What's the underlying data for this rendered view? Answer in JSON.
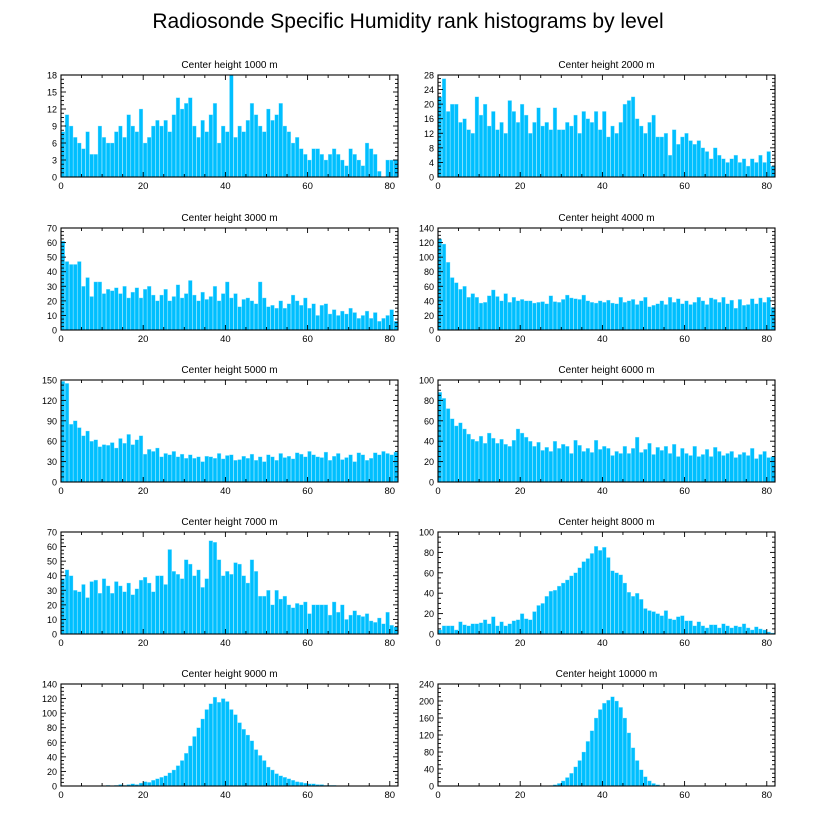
{
  "title": "Radiosonde Specific Humidity rank histograms by level",
  "colors": {
    "bar": "#00bfff",
    "bar_edge": "#9fe8ff",
    "axis": "#000000"
  },
  "chart_data": [
    {
      "type": "bar",
      "title": "Center height 1000 m",
      "xlim": [
        0,
        82
      ],
      "ylim": [
        0,
        18
      ],
      "xticks": [
        0,
        20,
        40,
        60,
        80
      ],
      "yticks": [
        0,
        3,
        6,
        9,
        12,
        15,
        18
      ],
      "values": [
        8,
        11,
        9,
        7,
        6,
        5,
        8,
        4,
        4,
        9,
        7,
        6,
        6,
        8,
        9,
        7,
        11,
        9,
        8,
        12,
        6,
        7,
        9,
        10,
        9,
        10,
        8,
        11,
        14,
        12,
        13,
        14,
        9,
        7,
        10,
        8,
        11,
        13,
        6,
        9,
        8,
        18,
        7,
        9,
        8,
        10,
        13,
        11,
        9,
        8,
        12,
        10,
        11,
        13,
        9,
        8,
        6,
        7,
        5,
        4,
        3,
        5,
        5,
        4,
        3,
        4,
        5,
        4,
        3,
        2,
        5,
        4,
        3,
        2,
        6,
        5,
        4,
        1,
        0,
        3,
        3,
        3
      ]
    },
    {
      "type": "bar",
      "title": "Center height 2000 m",
      "xlim": [
        0,
        82
      ],
      "ylim": [
        0,
        28
      ],
      "xticks": [
        0,
        20,
        40,
        60,
        80
      ],
      "yticks": [
        0,
        4,
        8,
        12,
        16,
        20,
        24,
        28
      ],
      "values": [
        22,
        27,
        18,
        20,
        20,
        15,
        16,
        13,
        12,
        22,
        17,
        20,
        14,
        18,
        13,
        15,
        12,
        21,
        18,
        15,
        20,
        17,
        12,
        15,
        19,
        14,
        15,
        13,
        19,
        13,
        13,
        15,
        14,
        17,
        12,
        18,
        16,
        15,
        18,
        13,
        18,
        11,
        14,
        12,
        15,
        20,
        21,
        22,
        16,
        14,
        12,
        15,
        17,
        11,
        11,
        12,
        6,
        13,
        9,
        11,
        12,
        10,
        9,
        10,
        8,
        7,
        5,
        8,
        6,
        5,
        4,
        5,
        6,
        4,
        5,
        3,
        5,
        4,
        6,
        4,
        7,
        3
      ]
    },
    {
      "type": "bar",
      "title": "Center height 3000 m",
      "xlim": [
        0,
        82
      ],
      "ylim": [
        0,
        70
      ],
      "xticks": [
        0,
        20,
        40,
        60,
        80
      ],
      "yticks": [
        0,
        10,
        20,
        30,
        40,
        50,
        60,
        70
      ],
      "values": [
        61,
        47,
        45,
        45,
        47,
        30,
        36,
        23,
        33,
        33,
        25,
        28,
        27,
        29,
        25,
        30,
        22,
        26,
        29,
        22,
        28,
        30,
        24,
        20,
        24,
        28,
        20,
        23,
        31,
        22,
        25,
        34,
        24,
        20,
        26,
        21,
        23,
        30,
        20,
        25,
        33,
        22,
        25,
        16,
        21,
        22,
        20,
        18,
        33,
        22,
        16,
        17,
        15,
        20,
        15,
        18,
        24,
        20,
        17,
        22,
        15,
        18,
        10,
        17,
        18,
        11,
        14,
        10,
        13,
        11,
        15,
        12,
        8,
        10,
        13,
        8,
        12,
        6,
        8,
        10,
        14,
        6
      ]
    },
    {
      "type": "bar",
      "title": "Center height 4000 m",
      "xlim": [
        0,
        82
      ],
      "ylim": [
        0,
        140
      ],
      "xticks": [
        0,
        20,
        40,
        60,
        80
      ],
      "yticks": [
        0,
        20,
        40,
        60,
        80,
        100,
        120,
        140
      ],
      "values": [
        125,
        118,
        93,
        72,
        65,
        56,
        60,
        45,
        50,
        45,
        37,
        38,
        47,
        55,
        46,
        40,
        50,
        38,
        45,
        40,
        42,
        40,
        40,
        37,
        38,
        39,
        36,
        47,
        39,
        38,
        42,
        48,
        44,
        43,
        42,
        48,
        40,
        38,
        37,
        40,
        38,
        41,
        37,
        36,
        45,
        38,
        40,
        42,
        35,
        40,
        45,
        32,
        34,
        36,
        40,
        35,
        45,
        38,
        43,
        36,
        40,
        35,
        38,
        45,
        40,
        35,
        44,
        42,
        38,
        45,
        36,
        41,
        30,
        42,
        34,
        35,
        43,
        36,
        44,
        38,
        45,
        31
      ]
    },
    {
      "type": "bar",
      "title": "Center height 5000 m",
      "xlim": [
        0,
        82
      ],
      "ylim": [
        0,
        150
      ],
      "xticks": [
        0,
        20,
        40,
        60,
        80
      ],
      "yticks": [
        0,
        30,
        60,
        90,
        120,
        150
      ],
      "values": [
        148,
        145,
        85,
        90,
        80,
        68,
        75,
        60,
        62,
        52,
        55,
        54,
        58,
        50,
        64,
        57,
        70,
        55,
        62,
        68,
        41,
        48,
        45,
        50,
        37,
        42,
        40,
        45,
        37,
        41,
        35,
        40,
        35,
        37,
        30,
        38,
        37,
        35,
        42,
        34,
        39,
        40,
        32,
        33,
        38,
        35,
        41,
        32,
        37,
        30,
        40,
        37,
        32,
        42,
        36,
        38,
        34,
        43,
        41,
        37,
        45,
        40,
        37,
        36,
        44,
        32,
        38,
        42,
        33,
        36,
        40,
        30,
        43,
        40,
        32,
        35,
        43,
        40,
        45,
        42,
        40,
        44
      ]
    },
    {
      "type": "bar",
      "title": "Center height 6000 m",
      "xlim": [
        0,
        82
      ],
      "ylim": [
        0,
        100
      ],
      "xticks": [
        0,
        20,
        40,
        60,
        80
      ],
      "yticks": [
        0,
        20,
        40,
        60,
        80,
        100
      ],
      "values": [
        88,
        82,
        72,
        62,
        55,
        58,
        52,
        47,
        42,
        40,
        45,
        38,
        48,
        43,
        38,
        42,
        37,
        35,
        41,
        52,
        48,
        44,
        40,
        35,
        39,
        31,
        34,
        30,
        40,
        33,
        37,
        35,
        28,
        41,
        36,
        30,
        33,
        29,
        41,
        32,
        35,
        33,
        26,
        30,
        28,
        35,
        28,
        33,
        44,
        29,
        32,
        38,
        27,
        34,
        31,
        35,
        28,
        37,
        25,
        33,
        28,
        26,
        35,
        25,
        27,
        32,
        25,
        34,
        30,
        26,
        28,
        30,
        24,
        27,
        29,
        26,
        33,
        23,
        27,
        30,
        24,
        25
      ]
    },
    {
      "type": "bar",
      "title": "Center height 7000 m",
      "xlim": [
        0,
        82
      ],
      "ylim": [
        0,
        70
      ],
      "xticks": [
        0,
        20,
        40,
        60,
        80
      ],
      "yticks": [
        0,
        10,
        20,
        30,
        40,
        50,
        60,
        70
      ],
      "values": [
        38,
        44,
        40,
        30,
        29,
        34,
        25,
        36,
        37,
        28,
        38,
        33,
        28,
        36,
        33,
        29,
        35,
        27,
        31,
        37,
        39,
        35,
        29,
        40,
        40,
        34,
        58,
        43,
        41,
        38,
        51,
        48,
        40,
        44,
        32,
        38,
        64,
        63,
        51,
        40,
        43,
        41,
        49,
        48,
        40,
        35,
        51,
        43,
        26,
        26,
        30,
        20,
        30,
        24,
        26,
        20,
        18,
        21,
        20,
        22,
        14,
        20,
        20,
        20,
        20,
        13,
        22,
        15,
        20,
        10,
        13,
        16,
        13,
        12,
        14,
        9,
        8,
        11,
        7,
        15,
        6,
        5
      ]
    },
    {
      "type": "bar",
      "title": "Center height 8000 m",
      "xlim": [
        0,
        82
      ],
      "ylim": [
        0,
        100
      ],
      "xticks": [
        0,
        20,
        40,
        60,
        80
      ],
      "yticks": [
        0,
        20,
        40,
        60,
        80,
        100
      ],
      "values": [
        4,
        8,
        8,
        8,
        4,
        12,
        9,
        8,
        10,
        10,
        11,
        14,
        10,
        17,
        8,
        12,
        8,
        10,
        13,
        14,
        20,
        15,
        14,
        22,
        28,
        30,
        37,
        42,
        43,
        47,
        50,
        53,
        57,
        60,
        65,
        71,
        74,
        79,
        86,
        82,
        85,
        75,
        62,
        60,
        58,
        50,
        41,
        37,
        40,
        34,
        25,
        23,
        22,
        20,
        18,
        23,
        15,
        14,
        17,
        18,
        13,
        13,
        8,
        12,
        8,
        6,
        9,
        9,
        6,
        10,
        8,
        6,
        8,
        7,
        10,
        6,
        4,
        7,
        5,
        4,
        2,
        1
      ]
    },
    {
      "type": "bar",
      "title": "Center height 9000 m",
      "xlim": [
        0,
        82
      ],
      "ylim": [
        0,
        140
      ],
      "xticks": [
        0,
        20,
        40,
        60,
        80
      ],
      "yticks": [
        0,
        20,
        40,
        60,
        80,
        100,
        120,
        140
      ],
      "values": [
        0,
        0,
        0,
        0,
        0,
        0,
        0,
        0,
        0,
        0,
        0,
        1,
        0,
        1,
        2,
        1,
        2,
        3,
        2,
        4,
        6,
        5,
        8,
        10,
        12,
        14,
        18,
        22,
        28,
        35,
        45,
        55,
        68,
        80,
        92,
        105,
        113,
        122,
        115,
        120,
        116,
        105,
        98,
        87,
        78,
        70,
        62,
        50,
        42,
        35,
        26,
        22,
        17,
        14,
        12,
        10,
        8,
        6,
        5,
        4,
        3,
        3,
        2,
        2,
        1,
        1,
        1,
        0,
        0,
        0,
        0,
        0,
        0,
        0,
        0,
        0,
        0,
        0,
        0,
        0,
        0,
        0
      ]
    },
    {
      "type": "bar",
      "title": "Center height 10000 m",
      "xlim": [
        0,
        82
      ],
      "ylim": [
        0,
        240
      ],
      "xticks": [
        0,
        20,
        40,
        60,
        80
      ],
      "yticks": [
        0,
        40,
        80,
        120,
        160,
        200,
        240
      ],
      "values": [
        0,
        0,
        0,
        0,
        0,
        0,
        0,
        0,
        0,
        0,
        0,
        0,
        0,
        0,
        0,
        0,
        0,
        0,
        0,
        0,
        0,
        0,
        0,
        0,
        0,
        0,
        0,
        1,
        3,
        6,
        12,
        20,
        30,
        45,
        60,
        80,
        105,
        130,
        160,
        180,
        195,
        202,
        210,
        200,
        185,
        160,
        125,
        90,
        60,
        38,
        22,
        12,
        6,
        3,
        1,
        0,
        0,
        0,
        0,
        0,
        0,
        0,
        0,
        0,
        0,
        0,
        0,
        0,
        0,
        0,
        0,
        0,
        0,
        0,
        0,
        0,
        0,
        0,
        0,
        0,
        0,
        0
      ]
    }
  ]
}
